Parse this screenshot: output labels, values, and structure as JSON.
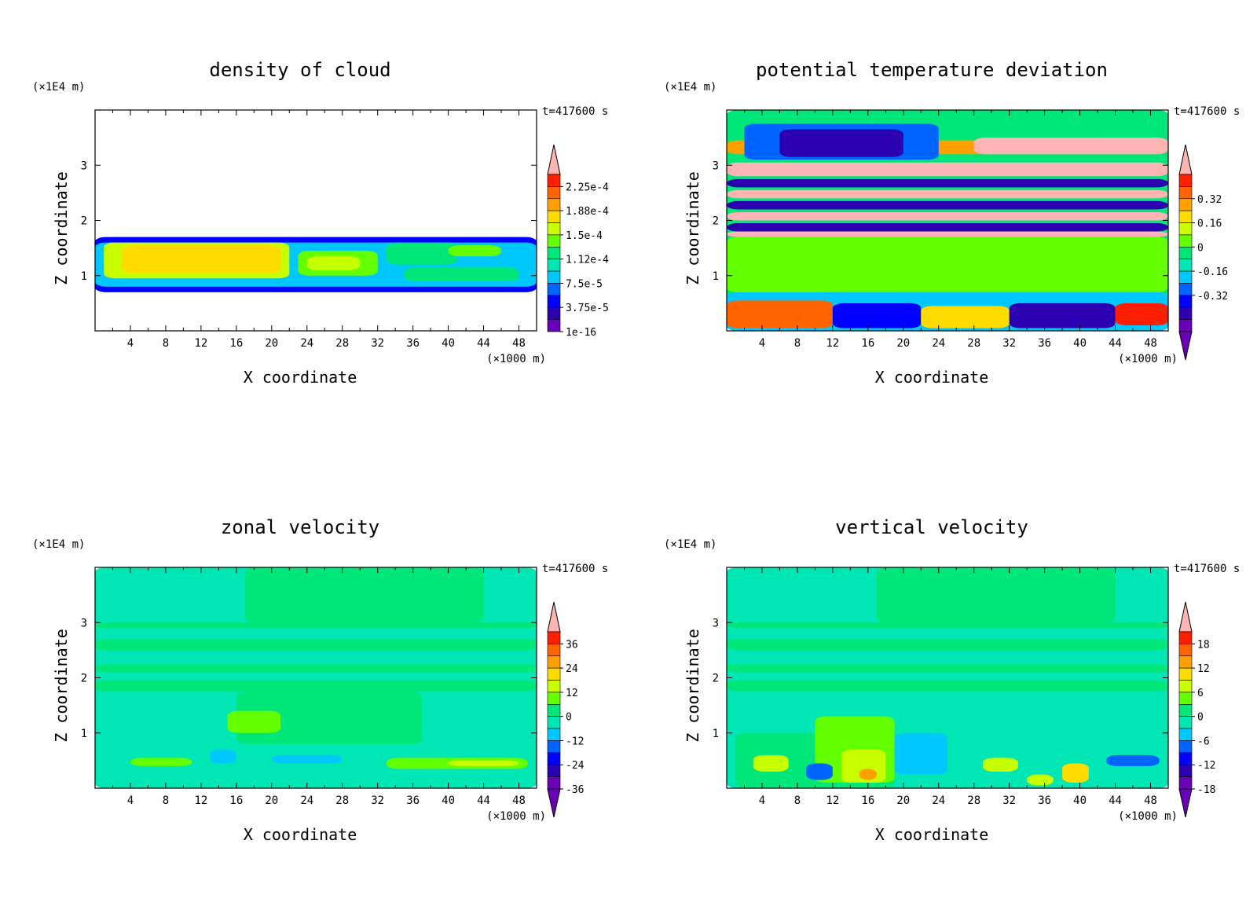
{
  "colors": {
    "ramp": [
      "#6a00b8",
      "#2a00b0",
      "#0000ff",
      "#0064ff",
      "#00c8ff",
      "#00e6b4",
      "#00e678",
      "#64ff00",
      "#c8ff00",
      "#ffdc00",
      "#ffa000",
      "#ff6400",
      "#ff1e00",
      "#ffb4b4"
    ]
  },
  "chart_data": [
    {
      "type": "heatmap",
      "title": "density of cloud",
      "xlabel": "X coordinate",
      "ylabel": "Z coordinate",
      "x_unit": "(×1000 m)",
      "y_unit": "(×1E4 m)",
      "time_label": "t=417600 s",
      "xlim": [
        0,
        50
      ],
      "ylim": [
        0,
        4
      ],
      "x_ticks": [
        "4",
        "8",
        "12",
        "16",
        "20",
        "24",
        "28",
        "32",
        "36",
        "40",
        "44",
        "48"
      ],
      "y_ticks": [
        "1",
        "2",
        "3"
      ],
      "colorbar_labels": [
        "2.25e-4",
        "1.88e-4",
        "1.5e-4",
        "1.12e-4",
        "7.5e-5",
        "3.75e-5",
        "1e-16"
      ],
      "colorbar_bottom_arrow": false,
      "field": [
        {
          "x0": 0,
          "x1": 50,
          "y0": 0.7,
          "y1": 1.7,
          "level": 2
        },
        {
          "x0": 0,
          "x1": 50,
          "y0": 0.8,
          "y1": 1.6,
          "level": 4
        },
        {
          "x0": 1,
          "x1": 22,
          "y0": 0.95,
          "y1": 1.6,
          "level": 8
        },
        {
          "x0": 3,
          "x1": 21,
          "y0": 1.05,
          "y1": 1.55,
          "level": 9
        },
        {
          "x0": 23,
          "x1": 32,
          "y0": 1.0,
          "y1": 1.45,
          "level": 7
        },
        {
          "x0": 24,
          "x1": 30,
          "y0": 1.1,
          "y1": 1.35,
          "level": 8
        },
        {
          "x0": 33,
          "x1": 41,
          "y0": 1.2,
          "y1": 1.6,
          "level": 6
        },
        {
          "x0": 35,
          "x1": 48,
          "y0": 0.9,
          "y1": 1.15,
          "level": 6
        },
        {
          "x0": 40,
          "x1": 46,
          "y0": 1.35,
          "y1": 1.55,
          "level": 7
        }
      ]
    },
    {
      "type": "heatmap",
      "title": "potential temperature deviation",
      "xlabel": "X coordinate",
      "ylabel": "Z coordinate",
      "x_unit": "(×1000 m)",
      "y_unit": "(×1E4 m)",
      "time_label": "t=417600 s",
      "xlim": [
        0,
        50
      ],
      "ylim": [
        0,
        4
      ],
      "x_ticks": [
        "4",
        "8",
        "12",
        "16",
        "20",
        "24",
        "28",
        "32",
        "36",
        "40",
        "44",
        "48"
      ],
      "y_ticks": [
        "1",
        "2",
        "3"
      ],
      "colorbar_labels": [
        "0.32",
        "0.16",
        "0",
        "-0.16",
        "-0.32"
      ],
      "colorbar_bottom_arrow": true,
      "field": [
        {
          "x0": 0,
          "x1": 50,
          "y0": 0,
          "y1": 4,
          "level": 6
        },
        {
          "x0": 0,
          "x1": 50,
          "y0": 0.7,
          "y1": 1.7,
          "level": 7
        },
        {
          "x0": 0,
          "x1": 50,
          "y0": 3.2,
          "y1": 3.45,
          "level": 10
        },
        {
          "x0": 28,
          "x1": 50,
          "y0": 3.2,
          "y1": 3.5,
          "level": 13
        },
        {
          "x0": 2,
          "x1": 24,
          "y0": 3.1,
          "y1": 3.75,
          "level": 3
        },
        {
          "x0": 6,
          "x1": 20,
          "y0": 3.15,
          "y1": 3.65,
          "level": 1
        },
        {
          "x0": 0,
          "x1": 50,
          "y0": 2.8,
          "y1": 3.05,
          "level": 13
        },
        {
          "x0": 0,
          "x1": 50,
          "y0": 2.6,
          "y1": 2.75,
          "level": 1
        },
        {
          "x0": 0,
          "x1": 50,
          "y0": 2.4,
          "y1": 2.55,
          "level": 13
        },
        {
          "x0": 0,
          "x1": 50,
          "y0": 2.2,
          "y1": 2.35,
          "level": 1
        },
        {
          "x0": 0,
          "x1": 50,
          "y0": 2.0,
          "y1": 2.15,
          "level": 13
        },
        {
          "x0": 0,
          "x1": 50,
          "y0": 1.8,
          "y1": 1.95,
          "level": 1
        },
        {
          "x0": 0,
          "x1": 50,
          "y0": 1.7,
          "y1": 1.8,
          "level": 13
        },
        {
          "x0": 0,
          "x1": 50,
          "y0": 0.0,
          "y1": 0.7,
          "level": 4
        },
        {
          "x0": 0,
          "x1": 12,
          "y0": 0.05,
          "y1": 0.55,
          "level": 11
        },
        {
          "x0": 12,
          "x1": 22,
          "y0": 0.05,
          "y1": 0.5,
          "level": 2
        },
        {
          "x0": 22,
          "x1": 32,
          "y0": 0.05,
          "y1": 0.45,
          "level": 9
        },
        {
          "x0": 32,
          "x1": 44,
          "y0": 0.05,
          "y1": 0.5,
          "level": 1
        },
        {
          "x0": 44,
          "x1": 50,
          "y0": 0.1,
          "y1": 0.5,
          "level": 12
        }
      ]
    },
    {
      "type": "heatmap",
      "title": "zonal velocity",
      "xlabel": "X coordinate",
      "ylabel": "Z coordinate",
      "x_unit": "(×1000 m)",
      "y_unit": "(×1E4 m)",
      "time_label": "t=417600 s",
      "xlim": [
        0,
        50
      ],
      "ylim": [
        0,
        4
      ],
      "x_ticks": [
        "4",
        "8",
        "12",
        "16",
        "20",
        "24",
        "28",
        "32",
        "36",
        "40",
        "44",
        "48"
      ],
      "y_ticks": [
        "1",
        "2",
        "3"
      ],
      "colorbar_labels": [
        "36",
        "24",
        "12",
        "0",
        "-12",
        "-24",
        "-36"
      ],
      "colorbar_bottom_arrow": true,
      "field": [
        {
          "x0": 0,
          "x1": 50,
          "y0": 0,
          "y1": 4,
          "level": 5
        },
        {
          "x0": 17,
          "x1": 44,
          "y0": 3.0,
          "y1": 4,
          "level": 6
        },
        {
          "x0": 0,
          "x1": 50,
          "y0": 2.9,
          "y1": 3.0,
          "level": 6
        },
        {
          "x0": 0,
          "x1": 50,
          "y0": 2.5,
          "y1": 2.7,
          "level": 6
        },
        {
          "x0": 0,
          "x1": 50,
          "y0": 2.1,
          "y1": 2.25,
          "level": 6
        },
        {
          "x0": 0,
          "x1": 50,
          "y0": 1.75,
          "y1": 1.95,
          "level": 6
        },
        {
          "x0": 16,
          "x1": 37,
          "y0": 0.8,
          "y1": 1.75,
          "level": 6
        },
        {
          "x0": 15,
          "x1": 21,
          "y0": 1.0,
          "y1": 1.4,
          "level": 7
        },
        {
          "x0": 4,
          "x1": 11,
          "y0": 0.4,
          "y1": 0.55,
          "level": 7
        },
        {
          "x0": 13,
          "x1": 16,
          "y0": 0.45,
          "y1": 0.7,
          "level": 4
        },
        {
          "x0": 20,
          "x1": 28,
          "y0": 0.45,
          "y1": 0.6,
          "level": 4
        },
        {
          "x0": 33,
          "x1": 49,
          "y0": 0.35,
          "y1": 0.55,
          "level": 7
        },
        {
          "x0": 40,
          "x1": 48,
          "y0": 0.4,
          "y1": 0.5,
          "level": 8
        }
      ]
    },
    {
      "type": "heatmap",
      "title": "vertical velocity",
      "xlabel": "X coordinate",
      "ylabel": "Z coordinate",
      "x_unit": "(×1000 m)",
      "y_unit": "(×1E4 m)",
      "time_label": "t=417600 s",
      "xlim": [
        0,
        50
      ],
      "ylim": [
        0,
        4
      ],
      "x_ticks": [
        "4",
        "8",
        "12",
        "16",
        "20",
        "24",
        "28",
        "32",
        "36",
        "40",
        "44",
        "48"
      ],
      "y_ticks": [
        "1",
        "2",
        "3"
      ],
      "colorbar_labels": [
        "18",
        "12",
        "6",
        "0",
        "-6",
        "-12",
        "-18"
      ],
      "colorbar_bottom_arrow": true,
      "field": [
        {
          "x0": 0,
          "x1": 50,
          "y0": 0,
          "y1": 4,
          "level": 5
        },
        {
          "x0": 17,
          "x1": 44,
          "y0": 3.0,
          "y1": 4,
          "level": 6
        },
        {
          "x0": 0,
          "x1": 50,
          "y0": 2.9,
          "y1": 3.0,
          "level": 6
        },
        {
          "x0": 0,
          "x1": 50,
          "y0": 2.5,
          "y1": 2.7,
          "level": 6
        },
        {
          "x0": 0,
          "x1": 50,
          "y0": 2.1,
          "y1": 2.25,
          "level": 6
        },
        {
          "x0": 0,
          "x1": 50,
          "y0": 1.75,
          "y1": 1.95,
          "level": 6
        },
        {
          "x0": 1,
          "x1": 19,
          "y0": 0.0,
          "y1": 1.0,
          "level": 6
        },
        {
          "x0": 10,
          "x1": 19,
          "y0": 0.1,
          "y1": 1.3,
          "level": 7
        },
        {
          "x0": 13,
          "x1": 18,
          "y0": 0.1,
          "y1": 0.7,
          "level": 8
        },
        {
          "x0": 15,
          "x1": 17,
          "y0": 0.15,
          "y1": 0.35,
          "level": 10
        },
        {
          "x0": 3,
          "x1": 7,
          "y0": 0.3,
          "y1": 0.6,
          "level": 8
        },
        {
          "x0": 9,
          "x1": 12,
          "y0": 0.15,
          "y1": 0.45,
          "level": 3
        },
        {
          "x0": 19,
          "x1": 25,
          "y0": 0.25,
          "y1": 1.0,
          "level": 4
        },
        {
          "x0": 29,
          "x1": 33,
          "y0": 0.3,
          "y1": 0.55,
          "level": 8
        },
        {
          "x0": 34,
          "x1": 37,
          "y0": 0.05,
          "y1": 0.25,
          "level": 8
        },
        {
          "x0": 38,
          "x1": 41,
          "y0": 0.1,
          "y1": 0.45,
          "level": 9
        },
        {
          "x0": 43,
          "x1": 49,
          "y0": 0.4,
          "y1": 0.6,
          "level": 3
        }
      ]
    }
  ]
}
